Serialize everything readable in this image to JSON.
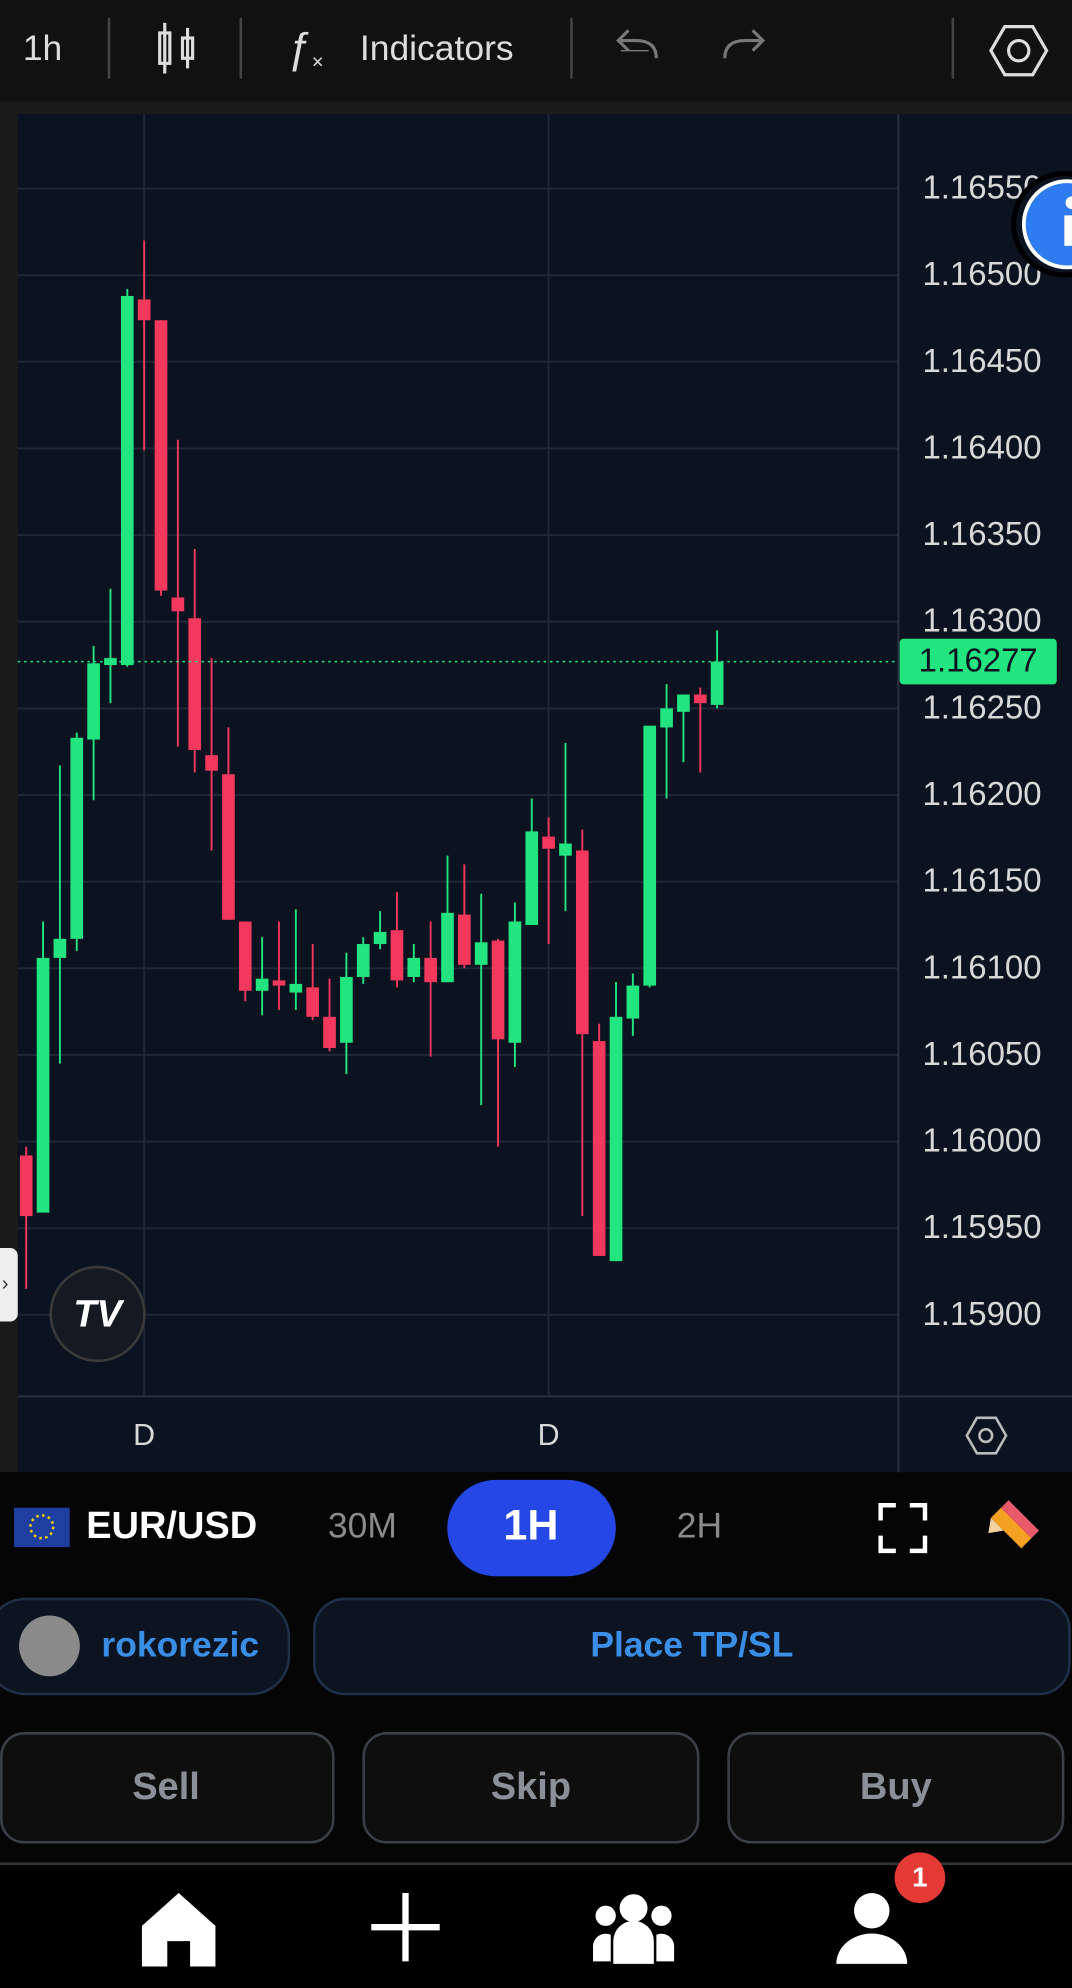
{
  "toolbar": {
    "interval": "1h",
    "indicators": "Indicators"
  },
  "chart_data": {
    "type": "candlestick",
    "categories": [
      null,
      null,
      null,
      null,
      null,
      null,
      null,
      "D",
      null,
      null,
      null,
      null,
      null,
      null,
      null,
      null,
      null,
      null,
      null,
      null,
      null,
      null,
      null,
      null,
      null,
      null,
      null,
      null,
      null,
      null,
      null,
      "D",
      null,
      null,
      null,
      null,
      null,
      null,
      null,
      null,
      null,
      null
    ],
    "open": [
      1.15992,
      1.15959,
      1.16106,
      1.16117,
      1.16232,
      1.16275,
      1.16275,
      1.16486,
      1.16474,
      1.16314,
      1.16302,
      1.16223,
      1.16212,
      1.16127,
      1.16087,
      1.16093,
      1.16086,
      1.16089,
      1.16072,
      1.16057,
      1.16095,
      1.16114,
      1.16122,
      1.16095,
      1.16106,
      1.16092,
      1.16131,
      1.16102,
      1.16116,
      1.16057,
      1.16125,
      1.16176,
      1.16165,
      1.16168,
      1.16058,
      1.15931,
      1.16071,
      1.1609,
      1.16239,
      1.16248,
      1.16258,
      1.16252
    ],
    "high": [
      1.15997,
      1.16127,
      1.16217,
      1.16236,
      1.16286,
      1.16319,
      1.16492,
      1.1652,
      1.16474,
      1.16405,
      1.16342,
      1.16279,
      1.16239,
      1.16127,
      1.16118,
      1.16127,
      1.16134,
      1.16114,
      1.16094,
      1.16109,
      1.16118,
      1.16133,
      1.16144,
      1.16114,
      1.16127,
      1.16165,
      1.1616,
      1.16143,
      1.16117,
      1.16138,
      1.16198,
      1.16187,
      1.1623,
      1.1618,
      1.16068,
      1.16092,
      1.16097,
      1.1624,
      1.16264,
      1.16258,
      1.16262,
      1.16295
    ],
    "low": [
      1.15915,
      1.15959,
      1.16045,
      1.1611,
      1.16197,
      1.16253,
      1.16274,
      1.16399,
      1.16315,
      1.16228,
      1.16213,
      1.16168,
      1.16128,
      1.16081,
      1.16073,
      1.16076,
      1.16076,
      1.1607,
      1.16052,
      1.16039,
      1.16091,
      1.16111,
      1.16089,
      1.16092,
      1.16049,
      1.16092,
      1.161,
      1.16021,
      1.15997,
      1.16043,
      1.16125,
      1.16114,
      1.16133,
      1.15957,
      1.15934,
      1.15931,
      1.16061,
      1.16089,
      1.16198,
      1.16219,
      1.16213,
      1.1625
    ],
    "close": [
      1.15957,
      1.16106,
      1.16117,
      1.16233,
      1.16276,
      1.16279,
      1.16488,
      1.16474,
      1.16318,
      1.16306,
      1.16226,
      1.16214,
      1.16128,
      1.16087,
      1.16094,
      1.1609,
      1.16091,
      1.16072,
      1.16054,
      1.16095,
      1.16114,
      1.16121,
      1.16093,
      1.16106,
      1.16092,
      1.16132,
      1.16102,
      1.16115,
      1.16059,
      1.16127,
      1.16179,
      1.16169,
      1.16172,
      1.16062,
      1.15934,
      1.16072,
      1.1609,
      1.1624,
      1.1625,
      1.16258,
      1.16253,
      1.16277
    ],
    "up_color": "#22e57f",
    "down_color": "#f2385c",
    "ylim": [
      1.15853,
      1.16593
    ],
    "yticks": [
      {
        "value": 1.1655,
        "label": "1.16550"
      },
      {
        "value": 1.165,
        "label": "1.16500"
      },
      {
        "value": 1.1645,
        "label": "1.16450"
      },
      {
        "value": 1.164,
        "label": "1.16400"
      },
      {
        "value": 1.1635,
        "label": "1.16350"
      },
      {
        "value": 1.163,
        "label": "1.16300"
      },
      {
        "value": 1.1625,
        "label": "1.16250"
      },
      {
        "value": 1.162,
        "label": "1.16200"
      },
      {
        "value": 1.1615,
        "label": "1.16150"
      },
      {
        "value": 1.161,
        "label": "1.16100"
      },
      {
        "value": 1.1605,
        "label": "1.16050"
      },
      {
        "value": 1.16,
        "label": "1.16000"
      },
      {
        "value": 1.1595,
        "label": "1.15950"
      },
      {
        "value": 1.159,
        "label": "1.15900"
      }
    ],
    "last_price": 1.16277,
    "grid": true
  },
  "symbol": "EUR/USD",
  "timeframes": [
    "30M",
    "1H",
    "2H"
  ],
  "user": "rokorezic",
  "tp_sl": "Place TP/SL",
  "actions": [
    "Sell",
    "Skip",
    "Buy"
  ],
  "notification_badge": 1
}
